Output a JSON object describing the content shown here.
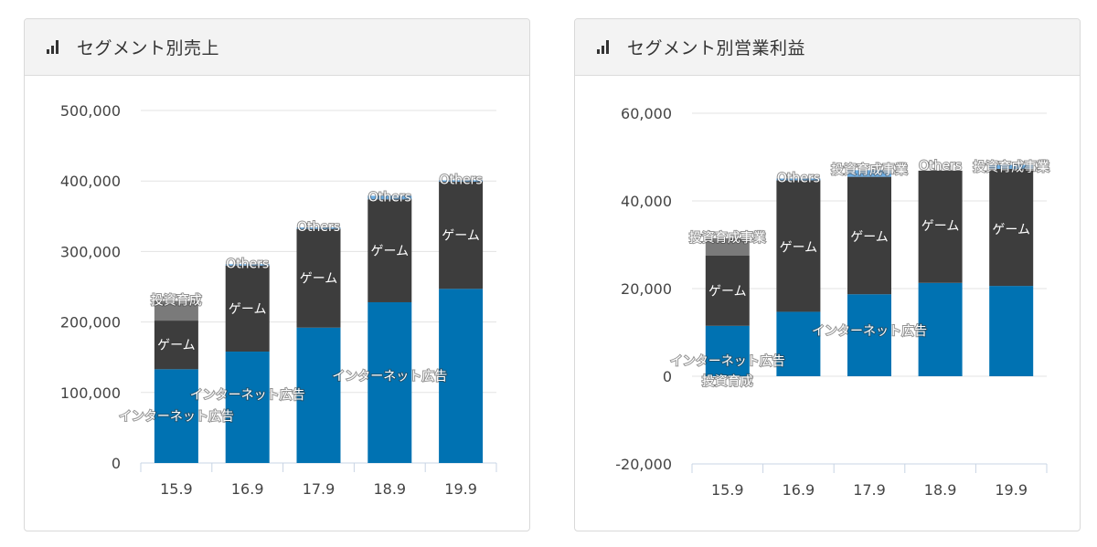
{
  "chart_data": [
    {
      "type": "bar",
      "stacked": true,
      "title": "セグメント別売上",
      "categories": [
        "15.9",
        "16.9",
        "17.9",
        "18.9",
        "19.9"
      ],
      "series": [
        {
          "name": "インターネット広告",
          "color": "#0072b2",
          "values": [
            133000,
            158000,
            192000,
            228000,
            247000
          ]
        },
        {
          "name": "ゲーム",
          "color": "#3d3d3d",
          "values": [
            69000,
            122000,
            140000,
            146000,
            152000
          ]
        },
        {
          "name": "投資育成",
          "color": "#7a7a7a",
          "values": [
            28000,
            0,
            0,
            0,
            0
          ]
        },
        {
          "name": "Others",
          "color": "#6fb0e6",
          "values": [
            0,
            2000,
            2000,
            5000,
            2000
          ]
        }
      ],
      "ylim": [
        0,
        500000
      ],
      "yticks": [
        "500,000",
        "400,000",
        "300,000",
        "200,000",
        "100,000",
        "0"
      ],
      "ytick_values": [
        500000,
        400000,
        300000,
        200000,
        100000,
        0
      ],
      "grid": true,
      "xlabel": "",
      "ylabel": ""
    },
    {
      "type": "bar",
      "stacked": true,
      "title": "セグメント別営業利益",
      "categories": [
        "15.9",
        "16.9",
        "17.9",
        "18.9",
        "19.9"
      ],
      "series": [
        {
          "name": "インターネット広告",
          "color": "#0072b2",
          "values": [
            11500,
            14700,
            18700,
            21300,
            20600
          ]
        },
        {
          "name": "ゲーム",
          "color": "#3d3d3d",
          "values": [
            16000,
            30000,
            26800,
            25600,
            26700
          ]
        },
        {
          "name": "投資育成",
          "color": "#7a7a7a",
          "values": [
            4000,
            0,
            0,
            0,
            0
          ]
        },
        {
          "name": "Others",
          "color": "#6fb0e6",
          "values": [
            0,
            400,
            0,
            0,
            0
          ]
        },
        {
          "name": "投資育成事業",
          "color": "#6fb0e6",
          "values": [
            0,
            0,
            1500,
            0,
            900
          ]
        }
      ],
      "ylim": [
        -20000,
        60000
      ],
      "yticks": [
        "60,000",
        "40,000",
        "20,000",
        "0",
        "-20,000"
      ],
      "ytick_values": [
        60000,
        40000,
        20000,
        0,
        -20000
      ],
      "grid": true,
      "xlabel": "",
      "ylabel": ""
    }
  ],
  "segment_labels": {
    "left": [
      {
        "text": "投資育成",
        "bar": 0,
        "anchor": "top",
        "value": 230000
      },
      {
        "text": "ゲーム",
        "bar": 0,
        "anchor": "mid",
        "value": 167500
      },
      {
        "text": "インターネット広告",
        "bar": 0,
        "anchor": "mid",
        "value": 66500
      },
      {
        "text": "Others",
        "bar": 1,
        "anchor": "top",
        "value": 282000
      },
      {
        "text": "ゲーム",
        "bar": 1,
        "anchor": "mid",
        "value": 219000
      },
      {
        "text": "インターネット広告",
        "bar": 1,
        "anchor": "mid",
        "value": 97000
      },
      {
        "text": "Others",
        "bar": 2,
        "anchor": "top",
        "value": 334000
      },
      {
        "text": "ゲーム",
        "bar": 2,
        "anchor": "mid",
        "value": 262000
      },
      {
        "text": "Others",
        "bar": 3,
        "anchor": "top",
        "value": 376000
      },
      {
        "text": "ゲーム",
        "bar": 3,
        "anchor": "mid",
        "value": 301000
      },
      {
        "text": "インターネット広告",
        "bar": 3,
        "anchor": "mid",
        "value": 124000
      },
      {
        "text": "Others",
        "bar": 4,
        "anchor": "top",
        "value": 401000
      },
      {
        "text": "ゲーム",
        "bar": 4,
        "anchor": "mid",
        "value": 323000
      }
    ],
    "right": [
      {
        "text": "投資育成事業",
        "bar": 0,
        "anchor": "top",
        "value": 31500
      },
      {
        "text": "ゲーム",
        "bar": 0,
        "anchor": "mid",
        "value": 19500
      },
      {
        "text": "インターネット広告",
        "bar": 0,
        "anchor": "mid",
        "value": 3500
      },
      {
        "text": "投資育成",
        "bar": 0,
        "anchor": "mid",
        "value": -1000
      },
      {
        "text": "Others",
        "bar": 1,
        "anchor": "top",
        "value": 45100
      },
      {
        "text": "ゲーム",
        "bar": 1,
        "anchor": "mid",
        "value": 29500
      },
      {
        "text": "投資育成事業",
        "bar": 2,
        "anchor": "top",
        "value": 47000
      },
      {
        "text": "ゲーム",
        "bar": 2,
        "anchor": "mid",
        "value": 31900
      },
      {
        "text": "インターネット広告",
        "bar": 2,
        "anchor": "mid",
        "value": 10400
      },
      {
        "text": "Others",
        "bar": 3,
        "anchor": "top",
        "value": 47900
      },
      {
        "text": "ゲーム",
        "bar": 3,
        "anchor": "mid",
        "value": 34400
      },
      {
        "text": "投資育成事業",
        "bar": 4,
        "anchor": "top",
        "value": 47600
      },
      {
        "text": "ゲーム",
        "bar": 4,
        "anchor": "mid",
        "value": 33500
      }
    ]
  }
}
